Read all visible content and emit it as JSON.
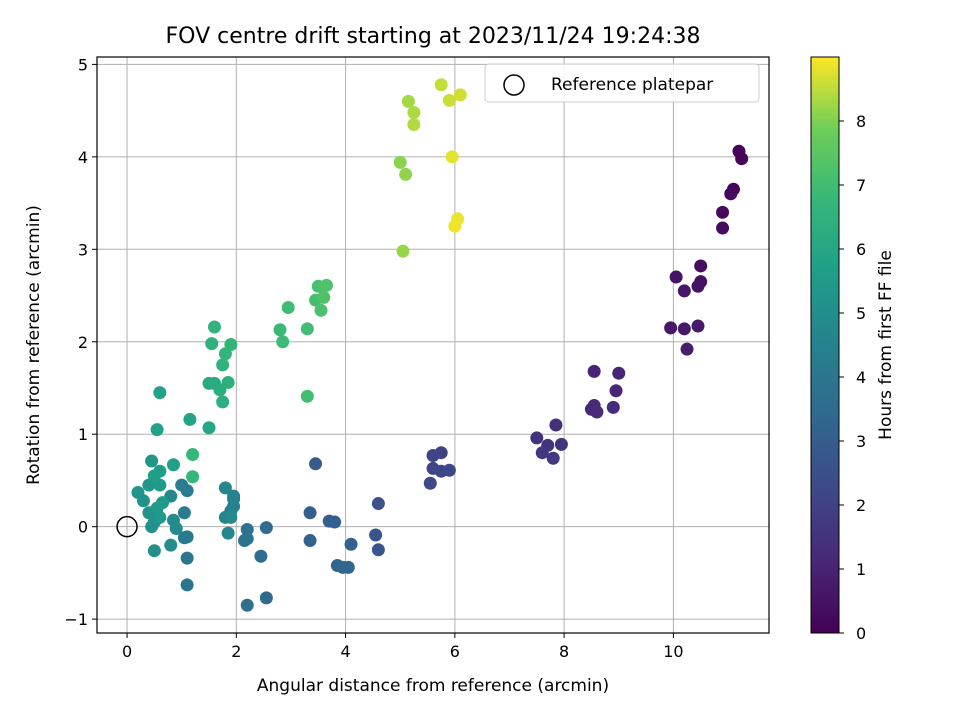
{
  "chart_data": {
    "type": "scatter",
    "title": "FOV centre drift starting at 2023/11/24 19:24:38",
    "xlabel": "Angular distance from reference (arcmin)",
    "ylabel": "Rotation from reference (arcmin)",
    "xlim": [
      -0.55,
      11.75
    ],
    "ylim": [
      -1.15,
      5.08
    ],
    "xticks": [
      0,
      2,
      4,
      6,
      8,
      10
    ],
    "yticks": [
      -1,
      0,
      1,
      2,
      3,
      4,
      5
    ],
    "grid": true,
    "legend": {
      "position": "top-right",
      "entries": [
        "Reference platepar"
      ]
    },
    "reference_point": {
      "x": 0,
      "y": 0,
      "label": "Reference platepar"
    },
    "colorbar": {
      "label": "Hours from first FF file",
      "colormap": "viridis",
      "range": [
        0,
        9.0
      ],
      "ticks": [
        0,
        1,
        2,
        3,
        4,
        5,
        6,
        7,
        8
      ]
    },
    "points": [
      {
        "x": 11.2,
        "y": 4.06,
        "c": 0.05
      },
      {
        "x": 11.25,
        "y": 3.98,
        "c": 0.1
      },
      {
        "x": 11.1,
        "y": 3.65,
        "c": 0.15
      },
      {
        "x": 11.05,
        "y": 3.6,
        "c": 0.2
      },
      {
        "x": 10.9,
        "y": 3.4,
        "c": 0.25
      },
      {
        "x": 10.9,
        "y": 3.23,
        "c": 0.3
      },
      {
        "x": 10.5,
        "y": 2.82,
        "c": 0.4
      },
      {
        "x": 10.5,
        "y": 2.65,
        "c": 0.45
      },
      {
        "x": 10.45,
        "y": 2.6,
        "c": 0.5
      },
      {
        "x": 10.05,
        "y": 2.7,
        "c": 0.55
      },
      {
        "x": 10.2,
        "y": 2.55,
        "c": 0.6
      },
      {
        "x": 9.95,
        "y": 2.15,
        "c": 0.65
      },
      {
        "x": 10.2,
        "y": 2.14,
        "c": 0.7
      },
      {
        "x": 10.45,
        "y": 2.17,
        "c": 0.75
      },
      {
        "x": 10.25,
        "y": 1.92,
        "c": 0.8
      },
      {
        "x": 9.0,
        "y": 1.66,
        "c": 1.0
      },
      {
        "x": 8.55,
        "y": 1.68,
        "c": 1.05
      },
      {
        "x": 8.95,
        "y": 1.47,
        "c": 1.1
      },
      {
        "x": 8.5,
        "y": 1.27,
        "c": 1.15
      },
      {
        "x": 8.55,
        "y": 1.31,
        "c": 1.2
      },
      {
        "x": 8.6,
        "y": 1.24,
        "c": 1.25
      },
      {
        "x": 8.9,
        "y": 1.29,
        "c": 1.3
      },
      {
        "x": 7.85,
        "y": 1.1,
        "c": 1.4
      },
      {
        "x": 7.5,
        "y": 0.96,
        "c": 1.45
      },
      {
        "x": 7.7,
        "y": 0.88,
        "c": 1.5
      },
      {
        "x": 7.95,
        "y": 0.89,
        "c": 1.55
      },
      {
        "x": 7.6,
        "y": 0.8,
        "c": 1.6
      },
      {
        "x": 7.8,
        "y": 0.74,
        "c": 1.65
      },
      {
        "x": 5.75,
        "y": 0.8,
        "c": 2.0
      },
      {
        "x": 5.6,
        "y": 0.77,
        "c": 2.05
      },
      {
        "x": 5.6,
        "y": 0.63,
        "c": 2.1
      },
      {
        "x": 5.75,
        "y": 0.6,
        "c": 2.15
      },
      {
        "x": 5.9,
        "y": 0.61,
        "c": 2.2
      },
      {
        "x": 5.55,
        "y": 0.47,
        "c": 2.25
      },
      {
        "x": 4.6,
        "y": 0.25,
        "c": 2.6
      },
      {
        "x": 4.55,
        "y": -0.09,
        "c": 2.65
      },
      {
        "x": 4.6,
        "y": -0.25,
        "c": 2.7
      },
      {
        "x": 3.45,
        "y": 0.68,
        "c": 2.9
      },
      {
        "x": 3.35,
        "y": 0.15,
        "c": 3.0
      },
      {
        "x": 3.7,
        "y": 0.06,
        "c": 3.05
      },
      {
        "x": 3.8,
        "y": 0.05,
        "c": 3.1
      },
      {
        "x": 3.35,
        "y": -0.15,
        "c": 3.15
      },
      {
        "x": 4.1,
        "y": -0.19,
        "c": 3.2
      },
      {
        "x": 3.85,
        "y": -0.42,
        "c": 3.25
      },
      {
        "x": 3.95,
        "y": -0.44,
        "c": 3.3
      },
      {
        "x": 4.05,
        "y": -0.44,
        "c": 3.35
      },
      {
        "x": 2.55,
        "y": -0.77,
        "c": 3.5
      },
      {
        "x": 2.55,
        "y": -0.01,
        "c": 3.55
      },
      {
        "x": 2.45,
        "y": -0.32,
        "c": 3.6
      },
      {
        "x": 2.2,
        "y": -0.85,
        "c": 3.7
      },
      {
        "x": 2.2,
        "y": -0.03,
        "c": 3.75
      },
      {
        "x": 2.15,
        "y": -0.15,
        "c": 3.8
      },
      {
        "x": 2.2,
        "y": -0.13,
        "c": 3.85
      },
      {
        "x": 1.1,
        "y": -0.63,
        "c": 4.0
      },
      {
        "x": 1.1,
        "y": -0.34,
        "c": 4.05
      },
      {
        "x": 1.1,
        "y": -0.11,
        "c": 4.1
      },
      {
        "x": 1.05,
        "y": -0.12,
        "c": 4.15
      },
      {
        "x": 1.05,
        "y": 0.15,
        "c": 4.2
      },
      {
        "x": 1.1,
        "y": 0.39,
        "c": 4.25
      },
      {
        "x": 1.0,
        "y": 0.45,
        "c": 4.3
      },
      {
        "x": 1.95,
        "y": 0.3,
        "c": 4.4
      },
      {
        "x": 1.95,
        "y": 0.22,
        "c": 4.45
      },
      {
        "x": 1.9,
        "y": 0.17,
        "c": 4.5
      },
      {
        "x": 1.95,
        "y": 0.33,
        "c": 4.55
      },
      {
        "x": 1.8,
        "y": 0.1,
        "c": 4.6
      },
      {
        "x": 1.8,
        "y": 0.42,
        "c": 4.65
      },
      {
        "x": 1.85,
        "y": -0.07,
        "c": 4.7
      },
      {
        "x": 1.9,
        "y": 0.1,
        "c": 4.75
      },
      {
        "x": 0.8,
        "y": 0.33,
        "c": 4.8
      },
      {
        "x": 0.9,
        "y": -0.02,
        "c": 4.85
      },
      {
        "x": 0.85,
        "y": 0.07,
        "c": 4.9
      },
      {
        "x": 0.8,
        "y": -0.2,
        "c": 4.95
      },
      {
        "x": 0.5,
        "y": -0.26,
        "c": 5.0
      },
      {
        "x": 0.5,
        "y": 0.05,
        "c": 5.05
      },
      {
        "x": 0.45,
        "y": 0.0,
        "c": 5.1
      },
      {
        "x": 0.4,
        "y": 0.15,
        "c": 5.15
      },
      {
        "x": 0.3,
        "y": 0.28,
        "c": 5.2
      },
      {
        "x": 0.2,
        "y": 0.37,
        "c": 5.25
      },
      {
        "x": 0.4,
        "y": 0.45,
        "c": 5.3
      },
      {
        "x": 0.45,
        "y": 0.71,
        "c": 5.35
      },
      {
        "x": 0.55,
        "y": 0.2,
        "c": 5.4
      },
      {
        "x": 0.6,
        "y": 0.1,
        "c": 5.45
      },
      {
        "x": 0.65,
        "y": 0.26,
        "c": 5.5
      },
      {
        "x": 0.6,
        "y": 0.45,
        "c": 5.55
      },
      {
        "x": 0.6,
        "y": 0.6,
        "c": 5.6
      },
      {
        "x": 0.5,
        "y": 0.55,
        "c": 5.65
      },
      {
        "x": 0.85,
        "y": 0.67,
        "c": 5.7
      },
      {
        "x": 0.55,
        "y": 1.05,
        "c": 5.8
      },
      {
        "x": 0.6,
        "y": 1.45,
        "c": 5.85
      },
      {
        "x": 1.15,
        "y": 1.16,
        "c": 5.9
      },
      {
        "x": 1.5,
        "y": 1.07,
        "c": 6.0
      },
      {
        "x": 1.5,
        "y": 1.55,
        "c": 6.1
      },
      {
        "x": 1.6,
        "y": 1.55,
        "c": 6.2
      },
      {
        "x": 1.7,
        "y": 1.48,
        "c": 6.3
      },
      {
        "x": 1.75,
        "y": 1.35,
        "c": 6.35
      },
      {
        "x": 1.85,
        "y": 1.56,
        "c": 6.4
      },
      {
        "x": 1.55,
        "y": 1.98,
        "c": 6.45
      },
      {
        "x": 1.6,
        "y": 2.16,
        "c": 6.5
      },
      {
        "x": 1.75,
        "y": 1.75,
        "c": 6.55
      },
      {
        "x": 1.8,
        "y": 1.87,
        "c": 6.6
      },
      {
        "x": 1.9,
        "y": 1.97,
        "c": 6.65
      },
      {
        "x": 1.2,
        "y": 0.78,
        "c": 6.7
      },
      {
        "x": 1.2,
        "y": 0.54,
        "c": 6.75
      },
      {
        "x": 2.8,
        "y": 2.13,
        "c": 6.85
      },
      {
        "x": 2.85,
        "y": 2.0,
        "c": 6.9
      },
      {
        "x": 2.95,
        "y": 2.37,
        "c": 6.95
      },
      {
        "x": 3.3,
        "y": 2.14,
        "c": 7.0
      },
      {
        "x": 3.3,
        "y": 1.41,
        "c": 7.05
      },
      {
        "x": 3.45,
        "y": 2.45,
        "c": 7.1
      },
      {
        "x": 3.5,
        "y": 2.6,
        "c": 7.15
      },
      {
        "x": 3.55,
        "y": 2.34,
        "c": 7.2
      },
      {
        "x": 3.6,
        "y": 2.48,
        "c": 7.25
      },
      {
        "x": 3.65,
        "y": 2.61,
        "c": 7.3
      },
      {
        "x": 5.0,
        "y": 3.94,
        "c": 8.1
      },
      {
        "x": 5.1,
        "y": 3.81,
        "c": 8.15
      },
      {
        "x": 5.05,
        "y": 2.98,
        "c": 8.2
      },
      {
        "x": 5.15,
        "y": 4.6,
        "c": 8.3
      },
      {
        "x": 5.25,
        "y": 4.48,
        "c": 8.35
      },
      {
        "x": 5.25,
        "y": 4.35,
        "c": 8.4
      },
      {
        "x": 5.75,
        "y": 4.78,
        "c": 8.55
      },
      {
        "x": 5.9,
        "y": 4.61,
        "c": 8.6
      },
      {
        "x": 6.1,
        "y": 4.67,
        "c": 8.65
      },
      {
        "x": 5.95,
        "y": 4.0,
        "c": 8.8
      },
      {
        "x": 6.05,
        "y": 3.33,
        "c": 8.85
      },
      {
        "x": 6.0,
        "y": 3.25,
        "c": 8.9
      }
    ]
  }
}
